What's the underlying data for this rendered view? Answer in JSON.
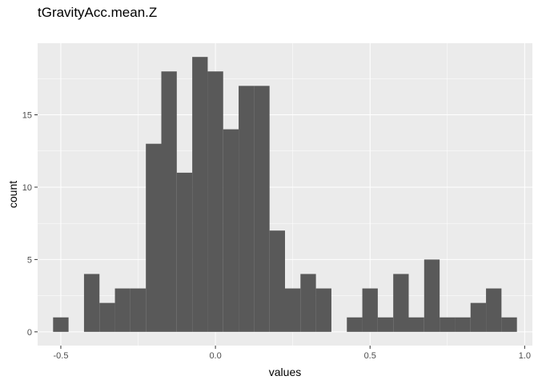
{
  "chart_data": {
    "type": "bar",
    "title": "tGravityAcc.mean.Z",
    "xlabel": "values",
    "ylabel": "count",
    "bin_width": 0.05,
    "bin_centers": [
      -0.5,
      -0.45,
      -0.4,
      -0.35,
      -0.3,
      -0.25,
      -0.2,
      -0.15,
      -0.1,
      -0.05,
      0.0,
      0.05,
      0.1,
      0.15,
      0.2,
      0.25,
      0.3,
      0.35,
      0.4,
      0.45,
      0.5,
      0.55,
      0.6,
      0.65,
      0.7,
      0.75,
      0.8,
      0.85,
      0.9,
      0.95
    ],
    "values": [
      1,
      0,
      4,
      2,
      3,
      3,
      13,
      18,
      11,
      19,
      18,
      14,
      17,
      17,
      7,
      3,
      4,
      3,
      0,
      1,
      3,
      1,
      4,
      1,
      5,
      1,
      1,
      2,
      3,
      1
    ],
    "xlim": [
      -0.575,
      1.025
    ],
    "ylim": [
      -0.95,
      19.95
    ],
    "x_ticks": [
      -0.5,
      0.0,
      0.5,
      1.0
    ],
    "x_tick_labels": [
      "-0.5",
      "0.0",
      "0.5",
      "1.0"
    ],
    "y_ticks": [
      0,
      5,
      10,
      15
    ],
    "y_tick_labels": [
      "0",
      "5",
      "10",
      "15"
    ],
    "grid": true,
    "colors": {
      "panel": "#ebebeb",
      "grid_major": "#ffffff",
      "bar": "#595959",
      "tick_text": "#4d4d4d",
      "tick_mark": "#333333"
    }
  }
}
